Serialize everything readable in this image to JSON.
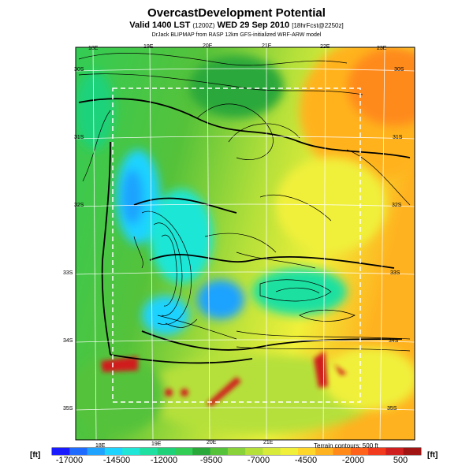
{
  "header": {
    "title": "OvercastDevelopment Potential",
    "valid_line_prefix": "Valid 1400 LST",
    "valid_line_utc": "(1200Z)",
    "valid_line_date": "WED 29 Sep 2010",
    "valid_line_fcst": "[18hrFcst@2250z]",
    "credit": "DrJack BLIPMAP from RASP 12km GFS-initialized WRF-ARW model"
  },
  "map": {
    "lon_labels": [
      "18E",
      "19E",
      "20E",
      "21E",
      "22E",
      "23E"
    ],
    "lat_labels": [
      "30S",
      "31S",
      "32S",
      "33S",
      "34S",
      "35S"
    ],
    "terrain_note": "Terrain contours: 500 ft"
  },
  "colorbar": {
    "unit_left": "[ft]",
    "unit_right": "[ft]",
    "labels": [
      "-17000",
      "-14500",
      "-12000",
      "-9500",
      "-7000",
      "-4500",
      "-2000",
      "500"
    ],
    "colors": [
      "#1a1aff",
      "#1f6bff",
      "#1fa3ff",
      "#1fd3ff",
      "#1fe6d6",
      "#1fe0a0",
      "#1fd27a",
      "#33cc55",
      "#2aa83a",
      "#55c23a",
      "#8ad23a",
      "#b5e03a",
      "#d8ea3a",
      "#f0f03a",
      "#ffd72a",
      "#ffb21f",
      "#ff8a1a",
      "#ff621a",
      "#f23a1f",
      "#d01f1f",
      "#a01414"
    ]
  }
}
